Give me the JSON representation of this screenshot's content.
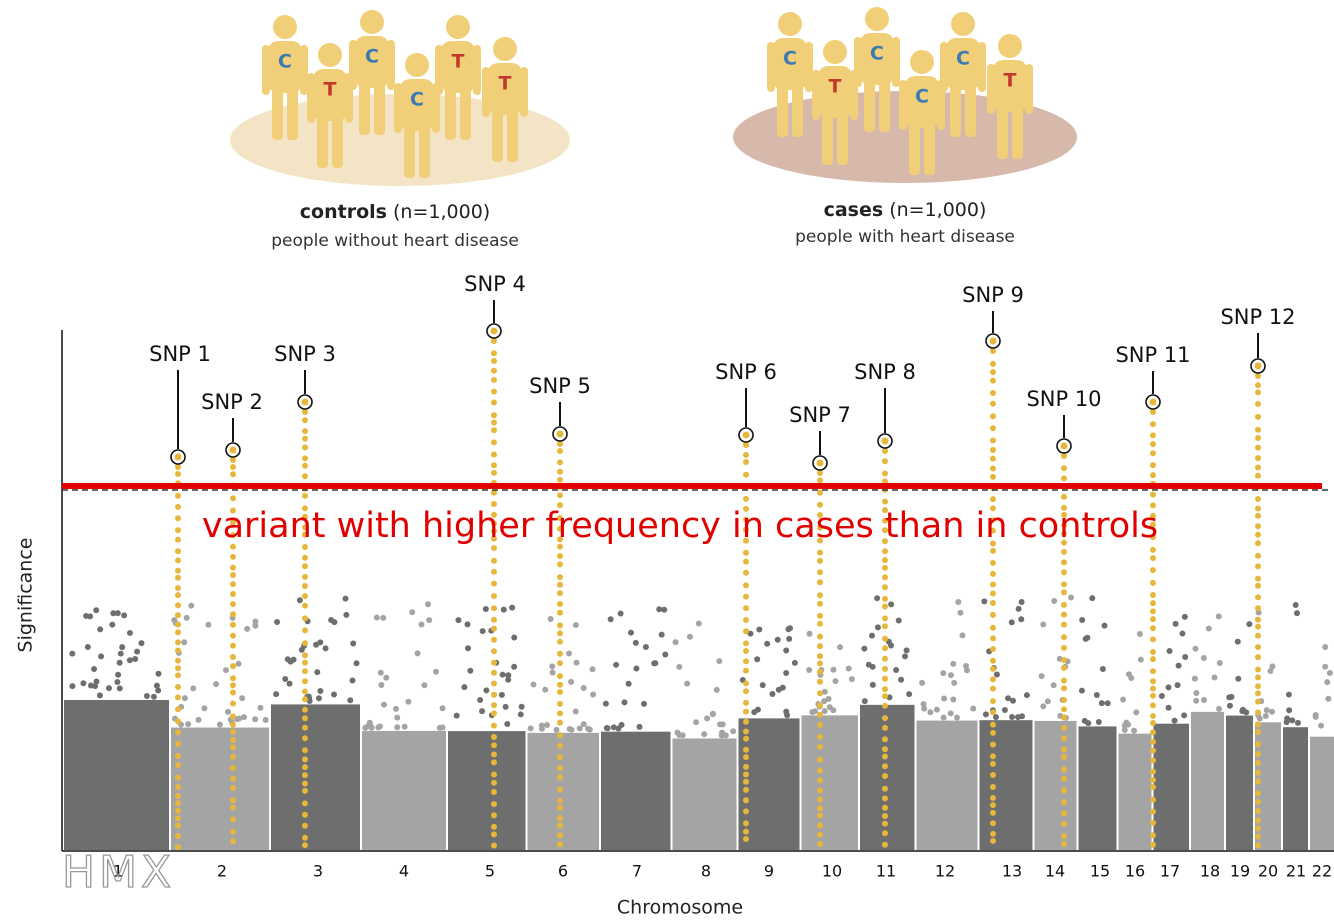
{
  "groups": [
    {
      "label": "controls",
      "n": "(n=1,000)",
      "description": "people without heart disease",
      "alleles": [
        "C",
        "T",
        "C",
        "C",
        "T",
        "T"
      ]
    },
    {
      "label": "cases",
      "n": "(n=1,000)",
      "description": "people with heart disease",
      "alleles": [
        "C",
        "T",
        "C",
        "C",
        "C",
        "T"
      ]
    }
  ],
  "plot": {
    "y_label": "Significance",
    "x_label": "Chromosome",
    "chromosomes": [
      "1",
      "2",
      "3",
      "4",
      "5",
      "6",
      "7",
      "8",
      "9",
      "10",
      "11",
      "12",
      "13",
      "14",
      "15",
      "16",
      "17",
      "18",
      "19",
      "20",
      "21",
      "22"
    ],
    "snps": [
      "SNP 1",
      "SNP 2",
      "SNP 3",
      "SNP 4",
      "SNP 5",
      "SNP 6",
      "SNP 7",
      "SNP 8",
      "SNP 9",
      "SNP 10",
      "SNP 11",
      "SNP 12"
    ],
    "annotation": "variant with higher frequency in cases than in controls"
  },
  "logo": "HMX"
}
